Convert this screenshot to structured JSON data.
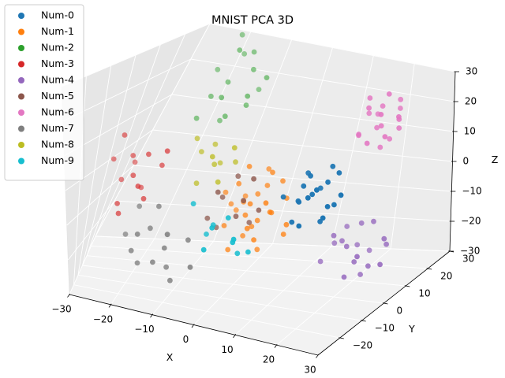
{
  "chart_data": {
    "type": "scatter",
    "projection": "3d",
    "title": "MNIST PCA 3D",
    "xlabel": "X",
    "ylabel": "Y",
    "zlabel": "Z",
    "xlim": [
      -30,
      30
    ],
    "ylim": [
      -30,
      30
    ],
    "zlim": [
      -30,
      30
    ],
    "x_ticks": [
      -30,
      -20,
      -10,
      0,
      10,
      20,
      30
    ],
    "y_ticks": [
      -20,
      -10,
      0,
      10,
      20,
      30
    ],
    "z_ticks": [
      -30,
      -20,
      -10,
      0,
      10,
      20,
      30
    ],
    "x_tick_labels": [
      "−30",
      "−20",
      "−10",
      "0",
      "10",
      "20",
      "30"
    ],
    "y_tick_labels": [
      "−20",
      "−10",
      "0",
      "10",
      "20",
      "30"
    ],
    "z_tick_labels": [
      "−30",
      "−20",
      "−10",
      "0",
      "10",
      "20",
      "30"
    ],
    "grid": true,
    "legend_position": "top-left",
    "series": [
      {
        "name": "Num-0",
        "color": "#1f77b4",
        "points": [
          [
            18,
            -8,
            5
          ],
          [
            20,
            -5,
            8
          ],
          [
            16,
            -10,
            3
          ],
          [
            22,
            -6,
            2
          ],
          [
            19,
            -12,
            6
          ],
          [
            15,
            -4,
            9
          ],
          [
            21,
            -9,
            -1
          ],
          [
            17,
            -7,
            10
          ],
          [
            23,
            -11,
            4
          ],
          [
            14,
            -6,
            1
          ],
          [
            20,
            -3,
            12
          ],
          [
            18,
            -14,
            -2
          ],
          [
            16,
            -8,
            7
          ],
          [
            24,
            -7,
            6
          ],
          [
            12,
            -9,
            3
          ],
          [
            19,
            -6,
            -4
          ],
          [
            21,
            -12,
            9
          ],
          [
            17,
            -2,
            4
          ],
          [
            15,
            -11,
            -3
          ],
          [
            22,
            -4,
            11
          ]
        ]
      },
      {
        "name": "Num-1",
        "color": "#ff7f0e",
        "points": [
          [
            -2,
            6,
            -8
          ],
          [
            2,
            4,
            -12
          ],
          [
            0,
            8,
            -6
          ],
          [
            -4,
            2,
            -14
          ],
          [
            4,
            6,
            -10
          ],
          [
            1,
            10,
            -4
          ],
          [
            -3,
            4,
            -2
          ],
          [
            3,
            0,
            -16
          ],
          [
            -1,
            6,
            -18
          ],
          [
            5,
            2,
            -8
          ],
          [
            0,
            12,
            0
          ],
          [
            -5,
            8,
            -10
          ],
          [
            2,
            -2,
            -12
          ],
          [
            6,
            8,
            -6
          ],
          [
            -2,
            0,
            -20
          ],
          [
            4,
            10,
            -2
          ],
          [
            1,
            4,
            -14
          ],
          [
            -6,
            6,
            -6
          ],
          [
            3,
            6,
            2
          ],
          [
            0,
            2,
            -10
          ],
          [
            8,
            4,
            -12
          ],
          [
            -3,
            10,
            -8
          ],
          [
            5,
            -1,
            -4
          ],
          [
            2,
            7,
            -22
          ],
          [
            -1,
            3,
            4
          ],
          [
            7,
            6,
            -16
          ],
          [
            -4,
            9,
            -12
          ],
          [
            1,
            1,
            -6
          ]
        ]
      },
      {
        "name": "Num-2",
        "color": "#2ca02c",
        "points": [
          [
            -14,
            14,
            22
          ],
          [
            -10,
            16,
            26
          ],
          [
            -16,
            12,
            18
          ],
          [
            -12,
            18,
            30
          ],
          [
            -8,
            12,
            20
          ],
          [
            -18,
            16,
            24
          ],
          [
            -11,
            10,
            14
          ],
          [
            -15,
            20,
            28
          ],
          [
            -9,
            15,
            16
          ],
          [
            -13,
            13,
            32
          ],
          [
            -17,
            10,
            12
          ],
          [
            -7,
            17,
            24
          ],
          [
            -12,
            8,
            20
          ],
          [
            -10,
            22,
            18
          ],
          [
            -14,
            16,
            10
          ],
          [
            -16,
            18,
            34
          ]
        ]
      },
      {
        "name": "Num-3",
        "color": "#d62728",
        "points": [
          [
            -24,
            -4,
            4
          ],
          [
            -22,
            -8,
            0
          ],
          [
            -26,
            -2,
            -4
          ],
          [
            -20,
            -6,
            6
          ],
          [
            -24,
            -10,
            -8
          ],
          [
            -18,
            -2,
            2
          ],
          [
            -26,
            -6,
            10
          ],
          [
            -22,
            0,
            -6
          ],
          [
            -20,
            -10,
            -2
          ],
          [
            -28,
            -4,
            2
          ],
          [
            -16,
            -6,
            8
          ],
          [
            -23,
            -12,
            -10
          ],
          [
            -25,
            2,
            0
          ],
          [
            -19,
            -8,
            -6
          ]
        ]
      },
      {
        "name": "Num-4",
        "color": "#9467bd",
        "points": [
          [
            16,
            14,
            -20
          ],
          [
            20,
            10,
            -24
          ],
          [
            18,
            18,
            -16
          ],
          [
            22,
            12,
            -26
          ],
          [
            14,
            16,
            -22
          ],
          [
            24,
            14,
            -18
          ],
          [
            19,
            8,
            -28
          ],
          [
            17,
            20,
            -24
          ],
          [
            21,
            16,
            -14
          ],
          [
            13,
            12,
            -26
          ],
          [
            23,
            18,
            -22
          ],
          [
            18,
            11,
            -20
          ],
          [
            25,
            10,
            -24
          ],
          [
            15,
            19,
            -18
          ],
          [
            20,
            14,
            -30
          ],
          [
            22,
            6,
            -20
          ],
          [
            16,
            9,
            -16
          ],
          [
            19,
            21,
            -26
          ]
        ]
      },
      {
        "name": "Num-5",
        "color": "#8c564b",
        "points": [
          [
            -4,
            -2,
            -4
          ],
          [
            0,
            -4,
            -8
          ],
          [
            -2,
            0,
            2
          ],
          [
            2,
            -6,
            -2
          ],
          [
            -6,
            -4,
            -10
          ],
          [
            4,
            -2,
            -6
          ],
          [
            -3,
            -8,
            0
          ],
          [
            1,
            2,
            -12
          ],
          [
            -5,
            0,
            -14
          ],
          [
            3,
            -4,
            4
          ]
        ]
      },
      {
        "name": "Num-6",
        "color": "#e377c2",
        "points": [
          [
            24,
            10,
            20
          ],
          [
            22,
            14,
            24
          ],
          [
            26,
            8,
            18
          ],
          [
            20,
            12,
            22
          ],
          [
            25,
            16,
            26
          ],
          [
            23,
            6,
            16
          ],
          [
            27,
            12,
            22
          ],
          [
            21,
            10,
            28
          ],
          [
            24,
            14,
            14
          ],
          [
            22,
            8,
            26
          ],
          [
            26,
            14,
            18
          ],
          [
            20,
            16,
            20
          ],
          [
            25,
            11,
            30
          ],
          [
            23,
            12,
            12
          ],
          [
            28,
            10,
            24
          ],
          [
            21,
            6,
            18
          ],
          [
            24,
            18,
            22
          ],
          [
            19,
            10,
            16
          ],
          [
            26,
            6,
            26
          ],
          [
            22,
            12,
            18
          ]
        ]
      },
      {
        "name": "Num-7",
        "color": "#7f7f7f",
        "points": [
          [
            -14,
            -18,
            -10
          ],
          [
            -10,
            -20,
            -14
          ],
          [
            -18,
            -14,
            -6
          ],
          [
            -12,
            -22,
            -18
          ],
          [
            -6,
            -16,
            -12
          ],
          [
            -16,
            -20,
            -20
          ],
          [
            -8,
            -24,
            -8
          ],
          [
            -20,
            -16,
            -14
          ],
          [
            -11,
            -14,
            -22
          ],
          [
            -15,
            -24,
            -10
          ],
          [
            -4,
            -20,
            -18
          ],
          [
            -13,
            -16,
            -4
          ],
          [
            -9,
            -18,
            -24
          ],
          [
            -17,
            -22,
            -16
          ]
        ]
      },
      {
        "name": "Num-8",
        "color": "#bcbd22",
        "points": [
          [
            -6,
            -4,
            6
          ],
          [
            -8,
            0,
            10
          ],
          [
            -4,
            -6,
            2
          ],
          [
            -10,
            -2,
            8
          ],
          [
            -2,
            -4,
            12
          ],
          [
            -7,
            2,
            4
          ],
          [
            -5,
            -8,
            10
          ],
          [
            -9,
            -5,
            0
          ],
          [
            -3,
            0,
            6
          ],
          [
            -11,
            -3,
            12
          ]
        ]
      },
      {
        "name": "Num-9",
        "color": "#17becf",
        "points": [
          [
            -2,
            -12,
            -8
          ],
          [
            2,
            -14,
            -4
          ],
          [
            -4,
            -10,
            -12
          ],
          [
            4,
            -16,
            -10
          ],
          [
            0,
            -18,
            -6
          ],
          [
            6,
            -12,
            -14
          ],
          [
            -6,
            -14,
            -2
          ],
          [
            3,
            -10,
            -16
          ],
          [
            -1,
            -20,
            -12
          ],
          [
            5,
            -18,
            -8
          ]
        ]
      }
    ]
  }
}
